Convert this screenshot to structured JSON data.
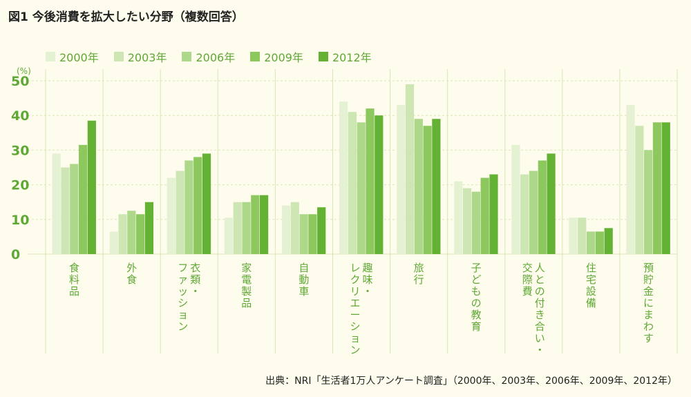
{
  "title": "図1 今後消費を拡大したい分野（複数回答）",
  "source": "出典：NRI「生活者1万人アンケート調査」（2000年、2003年、2006年、2009年、2012年）",
  "colors": {
    "background": "#fefcec",
    "axis_text": "#5fa836",
    "grid": "#d9e6b8",
    "series": [
      "#e5f1d3",
      "#cde6b4",
      "#add88a",
      "#8cc85e",
      "#63b233"
    ]
  },
  "chart_data": {
    "type": "bar",
    "ylabel": "(%)",
    "ylim": [
      0,
      50
    ],
    "yticks": [
      0,
      10,
      20,
      30,
      40,
      50
    ],
    "grid": true,
    "legend_position": "top-left",
    "categories": [
      "食料品",
      "外食",
      "衣類・ファッション",
      "家電製品",
      "自動車",
      "趣味・レクリエーション",
      "旅行",
      "子どもの教育",
      "人との付き合い・交際費",
      "住宅設備",
      "預貯金にまわす"
    ],
    "category_display": [
      [
        "食料品"
      ],
      [
        "外食"
      ],
      [
        "衣類・",
        "ファッション"
      ],
      [
        "家電製品"
      ],
      [
        "自動車"
      ],
      [
        "趣味・",
        "レクリエーション"
      ],
      [
        "旅行"
      ],
      [
        "子どもの教育"
      ],
      [
        "人との付き合い・",
        "交際費"
      ],
      [
        "住宅設備"
      ],
      [
        "預貯金にまわす"
      ]
    ],
    "series": [
      {
        "name": "2000年",
        "values": [
          29,
          6.5,
          22,
          10.5,
          14,
          44,
          43,
          21,
          31.5,
          10.5,
          43
        ]
      },
      {
        "name": "2003年",
        "values": [
          25,
          11.5,
          24,
          15,
          15,
          41,
          49,
          19,
          23,
          10.5,
          37
        ]
      },
      {
        "name": "2006年",
        "values": [
          26,
          12.5,
          27,
          15,
          11.5,
          38,
          39,
          18,
          24,
          6.5,
          30
        ]
      },
      {
        "name": "2009年",
        "values": [
          31.5,
          11.5,
          28,
          17,
          11.5,
          42,
          37,
          22,
          27,
          6.5,
          38
        ]
      },
      {
        "name": "2012年",
        "values": [
          38.5,
          15,
          29,
          17,
          13.5,
          40,
          39,
          23,
          29,
          7.5,
          38
        ]
      }
    ]
  }
}
